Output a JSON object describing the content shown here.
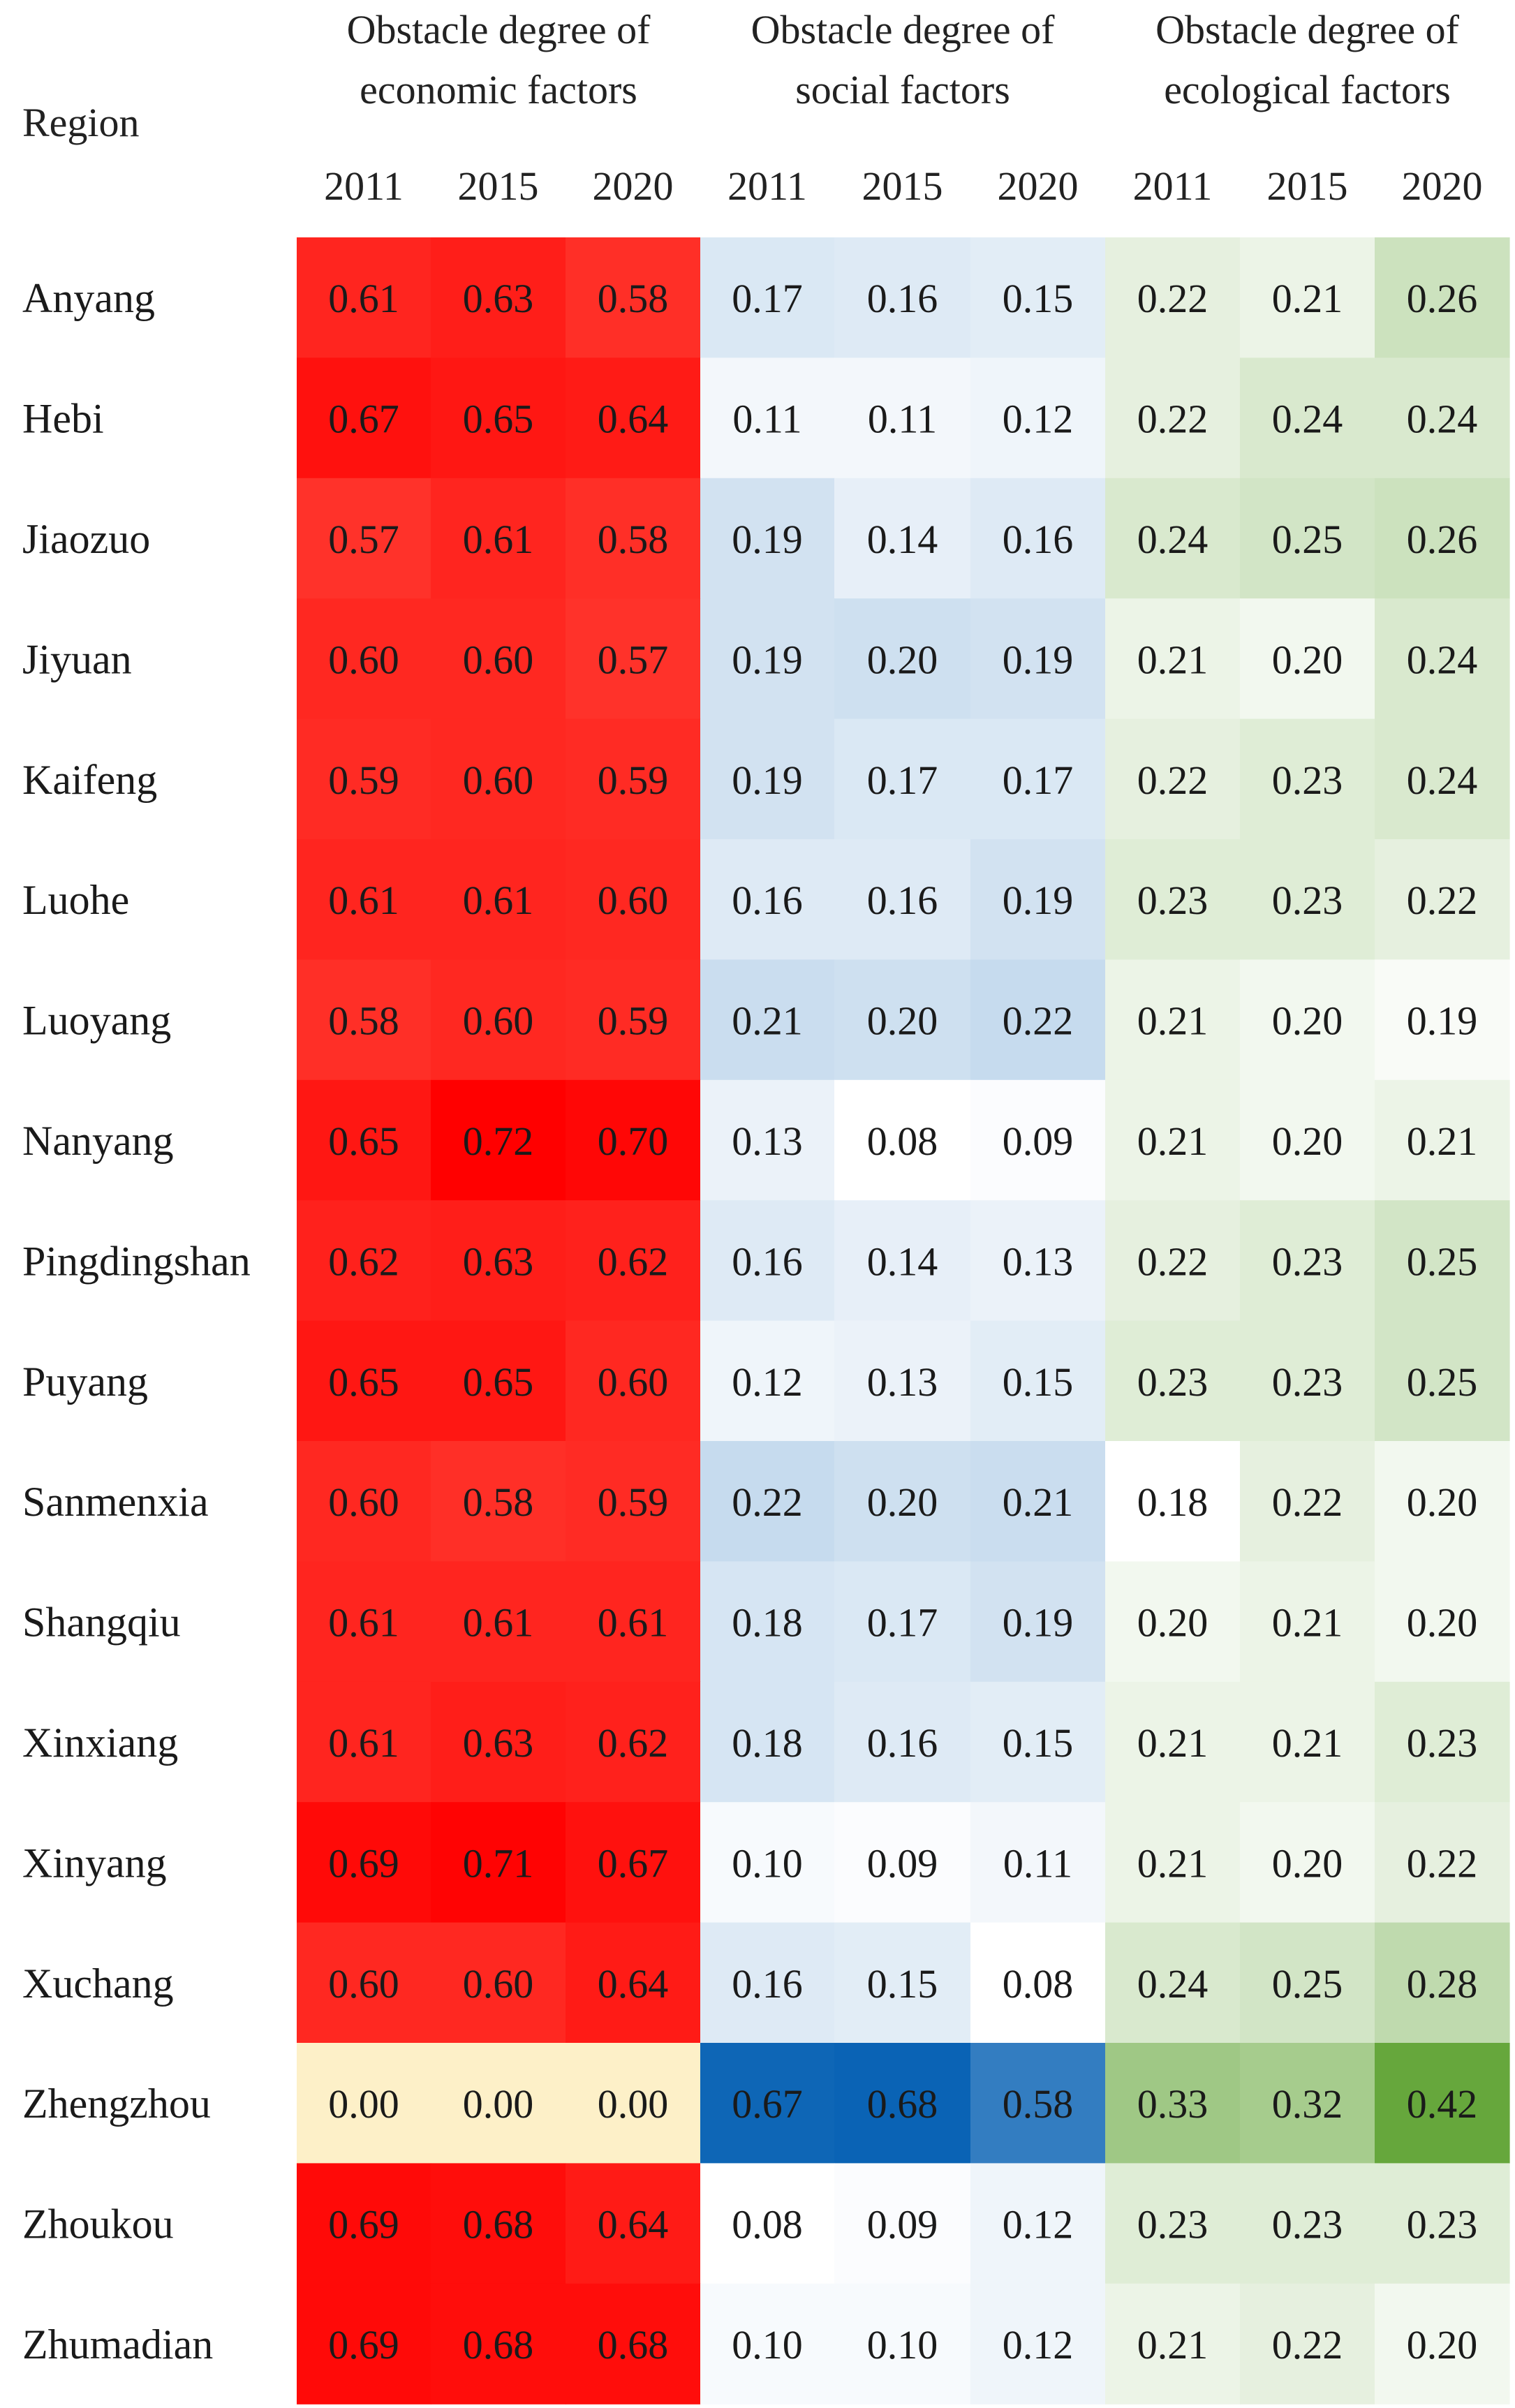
{
  "chart_data": {
    "type": "heatmap",
    "row_header": "Region",
    "groups": [
      {
        "name": [
          "Obstacle degree of",
          "economic factors"
        ],
        "palette": "red"
      },
      {
        "name": [
          "Obstacle degree of",
          "social factors"
        ],
        "palette": "blue"
      },
      {
        "name": [
          "Obstacle degree of",
          "ecological factors"
        ],
        "palette": "green"
      }
    ],
    "years": [
      "2011",
      "2015",
      "2020"
    ],
    "palettes": {
      "red": {
        "low": "#fdf0c8",
        "high": "#ff0000"
      },
      "blue": {
        "low": "#ffffff",
        "high": "#0a63b5"
      },
      "green": {
        "low": "#ffffff",
        "high": "#66a73c"
      }
    },
    "rows": [
      {
        "region": "Anyang",
        "values": [
          [
            0.61,
            0.63,
            0.58
          ],
          [
            0.17,
            0.16,
            0.15
          ],
          [
            0.22,
            0.21,
            0.26
          ]
        ]
      },
      {
        "region": "Hebi",
        "values": [
          [
            0.67,
            0.65,
            0.64
          ],
          [
            0.11,
            0.11,
            0.12
          ],
          [
            0.22,
            0.24,
            0.24
          ]
        ]
      },
      {
        "region": "Jiaozuo",
        "values": [
          [
            0.57,
            0.61,
            0.58
          ],
          [
            0.19,
            0.14,
            0.16
          ],
          [
            0.24,
            0.25,
            0.26
          ]
        ]
      },
      {
        "region": "Jiyuan",
        "values": [
          [
            0.6,
            0.6,
            0.57
          ],
          [
            0.19,
            0.2,
            0.19
          ],
          [
            0.21,
            0.2,
            0.24
          ]
        ]
      },
      {
        "region": "Kaifeng",
        "values": [
          [
            0.59,
            0.6,
            0.59
          ],
          [
            0.19,
            0.17,
            0.17
          ],
          [
            0.22,
            0.23,
            0.24
          ]
        ]
      },
      {
        "region": "Luohe",
        "values": [
          [
            0.61,
            0.61,
            0.6
          ],
          [
            0.16,
            0.16,
            0.19
          ],
          [
            0.23,
            0.23,
            0.22
          ]
        ]
      },
      {
        "region": "Luoyang",
        "values": [
          [
            0.58,
            0.6,
            0.59
          ],
          [
            0.21,
            0.2,
            0.22
          ],
          [
            0.21,
            0.2,
            0.19
          ]
        ]
      },
      {
        "region": "Nanyang",
        "values": [
          [
            0.65,
            0.72,
            0.7
          ],
          [
            0.13,
            0.08,
            0.09
          ],
          [
            0.21,
            0.2,
            0.21
          ]
        ]
      },
      {
        "region": "Pingdingshan",
        "values": [
          [
            0.62,
            0.63,
            0.62
          ],
          [
            0.16,
            0.14,
            0.13
          ],
          [
            0.22,
            0.23,
            0.25
          ]
        ]
      },
      {
        "region": "Puyang",
        "values": [
          [
            0.65,
            0.65,
            0.6
          ],
          [
            0.12,
            0.13,
            0.15
          ],
          [
            0.23,
            0.23,
            0.25
          ]
        ]
      },
      {
        "region": "Sanmenxia",
        "values": [
          [
            0.6,
            0.58,
            0.59
          ],
          [
            0.22,
            0.2,
            0.21
          ],
          [
            0.18,
            0.22,
            0.2
          ]
        ]
      },
      {
        "region": "Shangqiu",
        "values": [
          [
            0.61,
            0.61,
            0.61
          ],
          [
            0.18,
            0.17,
            0.19
          ],
          [
            0.2,
            0.21,
            0.2
          ]
        ]
      },
      {
        "region": "Xinxiang",
        "values": [
          [
            0.61,
            0.63,
            0.62
          ],
          [
            0.18,
            0.16,
            0.15
          ],
          [
            0.21,
            0.21,
            0.23
          ]
        ]
      },
      {
        "region": "Xinyang",
        "values": [
          [
            0.69,
            0.71,
            0.67
          ],
          [
            0.1,
            0.09,
            0.11
          ],
          [
            0.21,
            0.2,
            0.22
          ]
        ]
      },
      {
        "region": "Xuchang",
        "values": [
          [
            0.6,
            0.6,
            0.64
          ],
          [
            0.16,
            0.15,
            0.08
          ],
          [
            0.24,
            0.25,
            0.28
          ]
        ]
      },
      {
        "region": "Zhengzhou",
        "values": [
          [
            0.0,
            0.0,
            0.0
          ],
          [
            0.67,
            0.68,
            0.58
          ],
          [
            0.33,
            0.32,
            0.42
          ]
        ]
      },
      {
        "region": "Zhoukou",
        "values": [
          [
            0.69,
            0.68,
            0.64
          ],
          [
            0.08,
            0.09,
            0.12
          ],
          [
            0.23,
            0.23,
            0.23
          ]
        ]
      },
      {
        "region": "Zhumadian",
        "values": [
          [
            0.69,
            0.68,
            0.68
          ],
          [
            0.1,
            0.1,
            0.12
          ],
          [
            0.21,
            0.22,
            0.2
          ]
        ]
      }
    ]
  }
}
